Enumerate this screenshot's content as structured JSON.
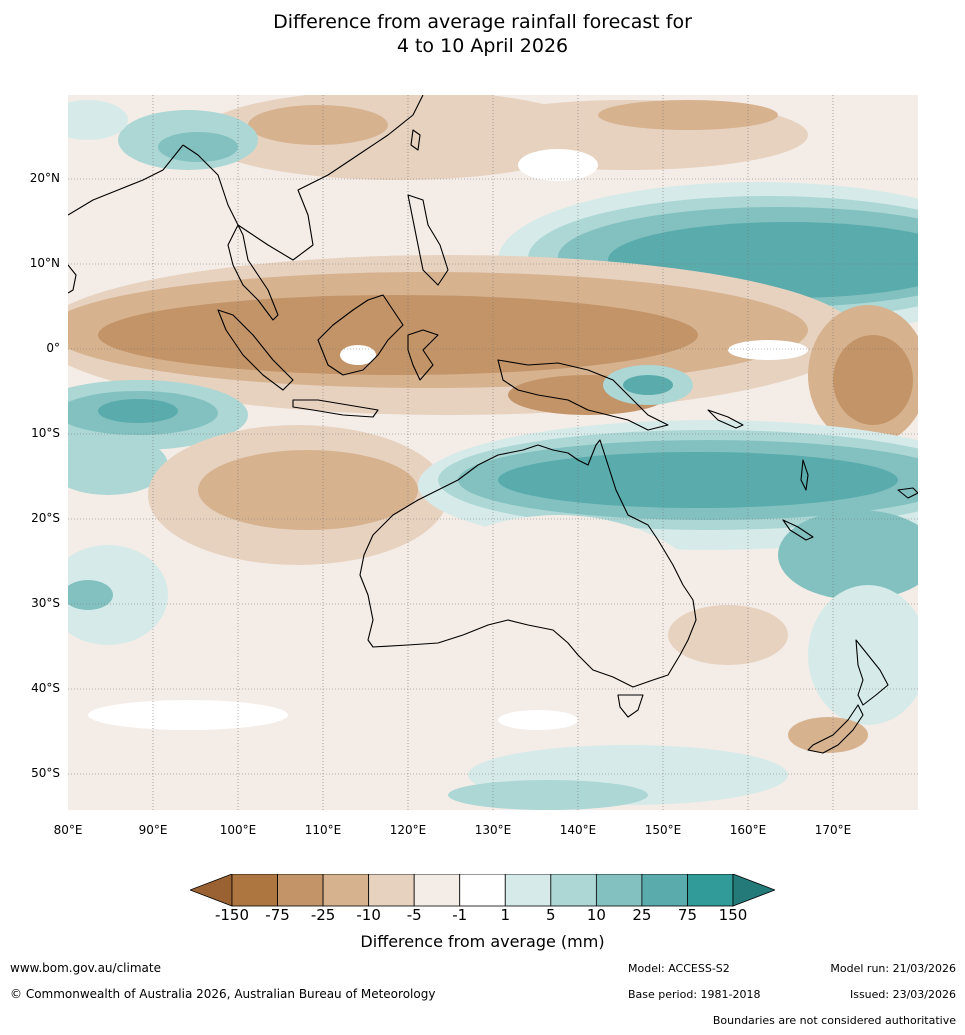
{
  "title": {
    "line1": "Difference from average rainfall forecast for",
    "line2": "4 to 10 April 2026"
  },
  "map": {
    "lat_labels": [
      "20°N",
      "10°N",
      "0°",
      "10°S",
      "20°S",
      "30°S",
      "40°S",
      "50°S"
    ],
    "lon_labels": [
      "80°E",
      "90°E",
      "100°E",
      "110°E",
      "120°E",
      "130°E",
      "140°E",
      "150°E",
      "160°E",
      "170°E"
    ],
    "extent": {
      "lon": [
        80,
        180
      ],
      "lat": [
        -55,
        30
      ]
    }
  },
  "legend": {
    "title": "Difference from average (mm)",
    "ticks": [
      "-150",
      "-75",
      "-25",
      "-10",
      "-5",
      "-1",
      "1",
      "5",
      "10",
      "25",
      "75",
      "150"
    ],
    "colors": [
      "#9a6232",
      "#ad753f",
      "#c39467",
      "#d6b28f",
      "#e7d2c0",
      "#f4ece6",
      "#ffffff",
      "#d6ebe9",
      "#acd7d5",
      "#82c1c0",
      "#59abac",
      "#309b98",
      "#247979"
    ]
  },
  "footer": {
    "website": "www.bom.gov.au/climate",
    "copyright": "© Commonwealth of Australia 2026, Australian Bureau of Meteorology",
    "model": "Model: ACCESS-S2",
    "base_period": "Base period: 1981-2018",
    "model_run": "Model run: 21/03/2026",
    "issued": "Issued: 23/03/2026",
    "disclaimer": "Boundaries are not considered authoritative"
  }
}
